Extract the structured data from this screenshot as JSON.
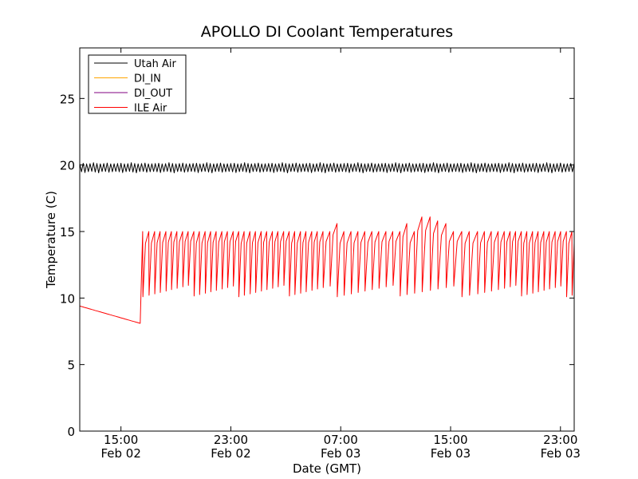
{
  "chart_data": {
    "type": "line",
    "title": "APOLLO DI Coolant Temperatures",
    "xlabel": "Date (GMT)",
    "ylabel": "Temperature (C)",
    "xlim_hours": [
      12.0,
      48.0
    ],
    "ylim": [
      0,
      28.8
    ],
    "yticks": [
      0,
      5,
      10,
      15,
      20,
      25
    ],
    "xticks": [
      {
        "hour": 15,
        "line1": "15:00",
        "line2": "Feb 02"
      },
      {
        "hour": 23,
        "line1": "23:00",
        "line2": "Feb 02"
      },
      {
        "hour": 31,
        "line1": "07:00",
        "line2": "Feb 03"
      },
      {
        "hour": 39,
        "line1": "15:00",
        "line2": "Feb 03"
      },
      {
        "hour": 47,
        "line1": "23:00",
        "line2": "Feb 03"
      }
    ],
    "legend_position": "top-left",
    "series": [
      {
        "name": "Utah Air",
        "color": "#000000",
        "pattern": "oscillating",
        "x_start_hour": 12.0,
        "x_end_hour": 48.0,
        "mean": 19.8,
        "amplitude": 0.35,
        "period_hours": 0.25
      },
      {
        "name": "DI_IN",
        "color": "#ffa500",
        "pattern": "none"
      },
      {
        "name": "DI_OUT",
        "color": "#800080",
        "pattern": "none"
      },
      {
        "name": "ILE Air",
        "color": "#ff0000",
        "pattern": "cooldown_then_sawtooth",
        "initial_segment": {
          "x": [
            12.0,
            16.4
          ],
          "y": [
            9.4,
            8.1
          ]
        },
        "jump_to": 15.0,
        "x_start_hour": 12.0,
        "x_end_hour": 48.0,
        "sawtooth": {
          "high": 15.0,
          "low_range": [
            10.1,
            11.0
          ],
          "cycle_hours": [
            0.45,
            0.42,
            0.4,
            0.42,
            0.4,
            0.4,
            0.42,
            0.4,
            0.42,
            0.4,
            0.42,
            0.4,
            0.4,
            0.42,
            0.4,
            0.42,
            0.4,
            0.4,
            0.42,
            0.4,
            0.42,
            0.4,
            0.42,
            0.4,
            0.42,
            0.4,
            0.4,
            0.42,
            0.4,
            0.42,
            0.4,
            0.42,
            0.5,
            0.52,
            0.5,
            0.52,
            0.5,
            0.5,
            0.52,
            0.5,
            0.52,
            0.5,
            0.52,
            0.5,
            0.55,
            0.55,
            0.6,
            0.55,
            0.6,
            0.55,
            0.6,
            0.55,
            0.6,
            0.5,
            0.5,
            0.5,
            0.45,
            0.42,
            0.4,
            0.42,
            0.4,
            0.42,
            0.4,
            0.42,
            0.4,
            0.42,
            0.4,
            0.42,
            0.4,
            0.42,
            0.4,
            0.42,
            0.4,
            0.42,
            0.4,
            0.42,
            0.4,
            0.42,
            0.4,
            0.42
          ],
          "peak_overrides": [
            {
              "hour": 30.0,
              "y": 15.6
            },
            {
              "hour": 35.1,
              "y": 15.6
            },
            {
              "hour": 36.2,
              "y": 16.1
            },
            {
              "hour": 37.1,
              "y": 16.1
            },
            {
              "hour": 37.6,
              "y": 15.8
            },
            {
              "hour": 38.2,
              "y": 15.6
            }
          ]
        }
      }
    ]
  }
}
